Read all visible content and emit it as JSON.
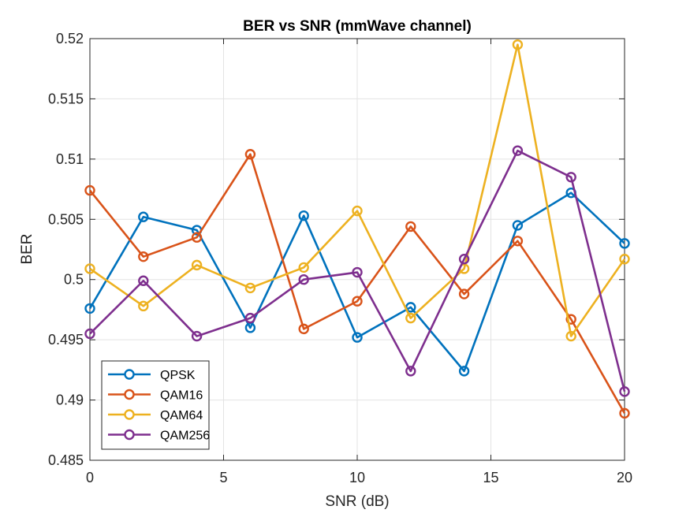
{
  "chart_data": {
    "type": "line",
    "title": "BER vs SNR (mmWave channel)",
    "xlabel": "SNR (dB)",
    "ylabel": "BER",
    "xlim": [
      0,
      20
    ],
    "ylim": [
      0.485,
      0.52
    ],
    "x_ticks": [
      0,
      5,
      10,
      15,
      20
    ],
    "x_tick_labels": [
      "0",
      "5",
      "10",
      "15",
      "20"
    ],
    "y_ticks": [
      0.485,
      0.49,
      0.495,
      0.5,
      0.505,
      0.51,
      0.515,
      0.52
    ],
    "y_tick_labels": [
      "0.485",
      "0.49",
      "0.495",
      "0.5",
      "0.505",
      "0.51",
      "0.515",
      "0.52"
    ],
    "grid": true,
    "legend_position": "bottom-left",
    "marker": "circle",
    "x": [
      0,
      2,
      4,
      6,
      8,
      10,
      12,
      14,
      16,
      18,
      20
    ],
    "series": [
      {
        "name": "QPSK",
        "color": "#0072BD",
        "values": [
          0.4976,
          0.5052,
          0.5041,
          0.496,
          0.5053,
          0.4952,
          0.4977,
          0.4924,
          0.5045,
          0.5072,
          0.503
        ]
      },
      {
        "name": "QAM16",
        "color": "#D95319",
        "values": [
          0.5074,
          0.5019,
          0.5035,
          0.5104,
          0.4959,
          0.4982,
          0.5044,
          0.4988,
          0.5032,
          0.4967,
          0.4889
        ]
      },
      {
        "name": "QAM64",
        "color": "#EDB120",
        "values": [
          0.5009,
          0.4978,
          0.5012,
          0.4993,
          0.501,
          0.5057,
          0.4968,
          0.5009,
          0.5195,
          0.4953,
          0.5017
        ]
      },
      {
        "name": "QAM256",
        "color": "#7E2F8E",
        "values": [
          0.4955,
          0.4999,
          0.4953,
          0.4968,
          0.5,
          0.5006,
          0.4924,
          0.5017,
          0.5107,
          0.5085,
          0.4907
        ]
      }
    ]
  }
}
